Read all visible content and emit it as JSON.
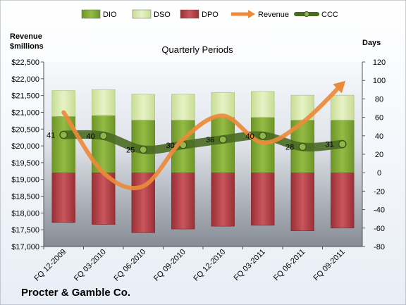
{
  "chart_data": {
    "type": "bar",
    "title": "Quarterly Periods",
    "company": "Procter & Gamble Co.",
    "left_axis_label": "Revenue\n$millions",
    "right_axis_label": "Days",
    "categories": [
      "FQ 12-2009",
      "FQ 03-2010",
      "FQ 06-2010",
      "FQ 09-2010",
      "FQ 12-2010",
      "FQ 03-2011",
      "FQ 06-2011",
      "FQ 09-2011"
    ],
    "left_ticks": [
      "$22,500",
      "$22,000",
      "$21,500",
      "$21,000",
      "$20,500",
      "$20,000",
      "$19,500",
      "$19,000",
      "$18,500",
      "$18,000",
      "$17,500",
      "$17,000"
    ],
    "left_range": [
      17000,
      22500
    ],
    "right_ticks": [
      "120",
      "100",
      "80",
      "60",
      "40",
      "20",
      "0",
      "-20",
      "-40",
      "-60",
      "-80"
    ],
    "right_range": [
      -80,
      120
    ],
    "series": [
      {
        "name": "DIO",
        "axis": "right",
        "values": [
          61,
          62,
          57,
          57,
          60,
          60,
          57,
          57
        ]
      },
      {
        "name": "DSO",
        "axis": "right",
        "values": [
          28,
          28,
          28,
          28,
          27,
          28,
          27,
          27
        ]
      },
      {
        "name": "DPO",
        "axis": "right",
        "values": [
          -54,
          -56,
          -65,
          -61,
          -58,
          -57,
          -63,
          -60
        ]
      },
      {
        "name": "Revenue",
        "axis": "left",
        "type": "line",
        "values": [
          21000,
          19200,
          18800,
          20200,
          20900,
          20100,
          20700,
          21850
        ]
      },
      {
        "name": "CCC",
        "axis": "right",
        "type": "line",
        "values": [
          41,
          40,
          25,
          30,
          36,
          40,
          28,
          31
        ]
      }
    ],
    "ccc_labels": [
      "41",
      "40",
      "25",
      "30",
      "36",
      "40",
      "28",
      "31"
    ],
    "legend": [
      "DIO",
      "DSO",
      "DPO",
      "Revenue",
      "CCC"
    ],
    "legend_position": "top",
    "colors": {
      "DIO": "#7da32e",
      "DSO": "#d6e9a8",
      "DPO": "#b8434a",
      "Revenue": "#ec8a3a",
      "CCC": "#4a6a22",
      "background_top": "#f5f8fc",
      "background_bottom": "#8a9098"
    }
  }
}
